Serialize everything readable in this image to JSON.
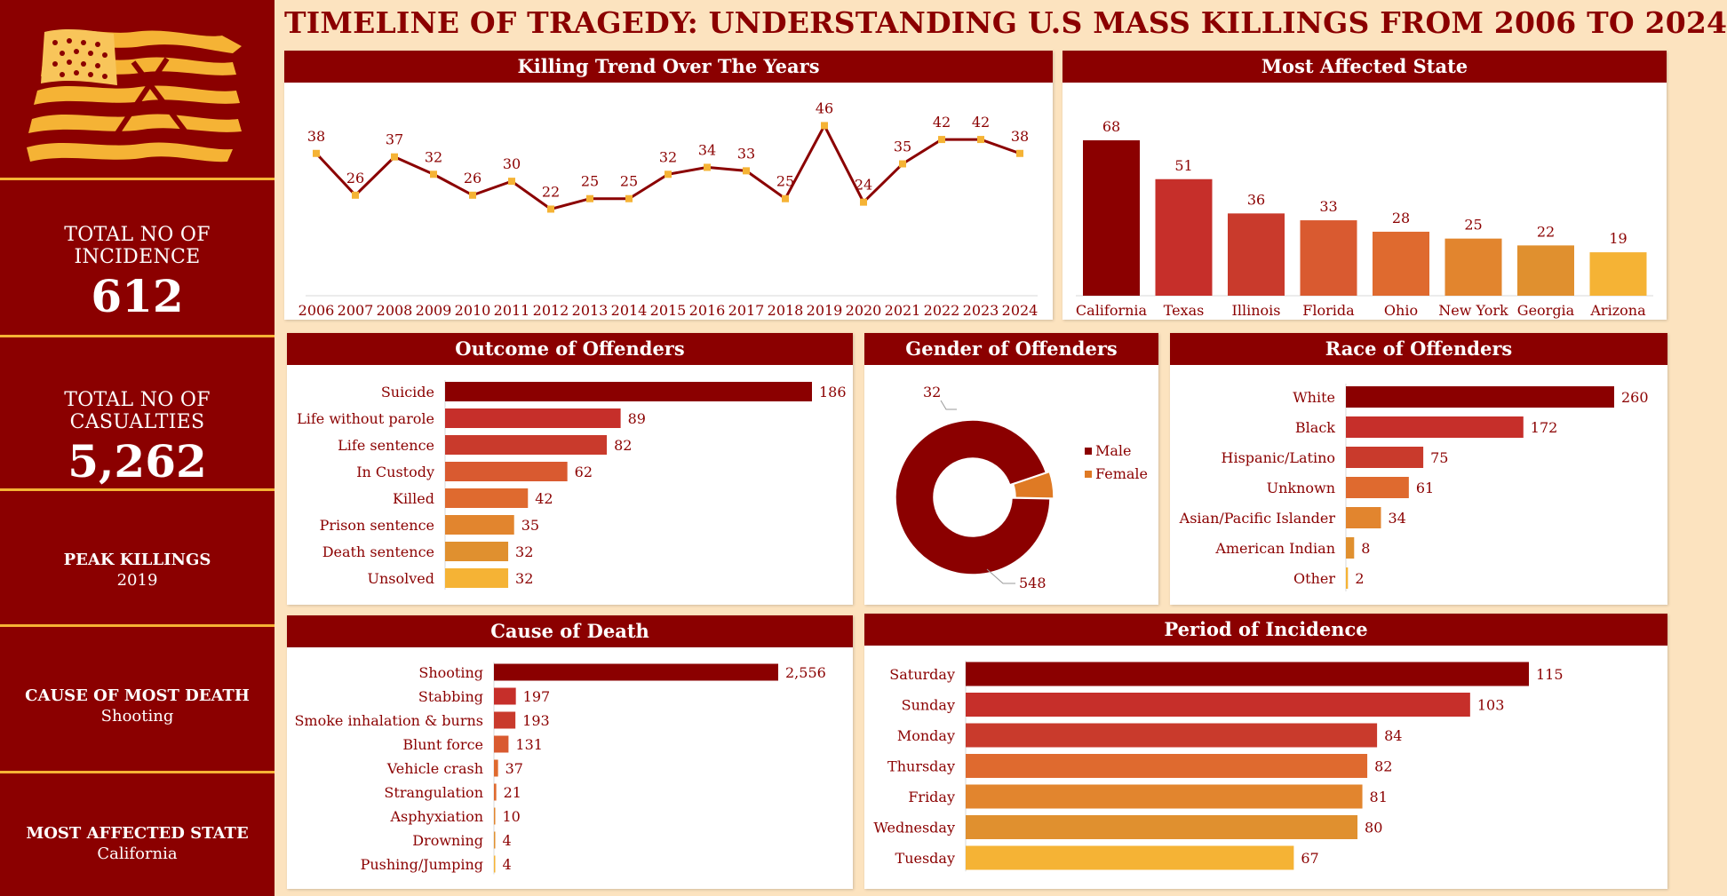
{
  "title": "TIMELINE OF TRAGEDY: UNDERSTANDING U.S MASS KILLINGS FROM 2006 TO 2024",
  "colors": {
    "maroon": "#8b0000",
    "accent": "#f5b335",
    "background": "#fce3bf",
    "ramp": [
      "#8b0000",
      "#c62f2a",
      "#c93a2c",
      "#d95a30",
      "#df6a2f",
      "#e2852e",
      "#e0902f",
      "#f5b335"
    ]
  },
  "kpis": {
    "total_incidence": {
      "label": "TOTAL NO OF INCIDENCE",
      "value": "612"
    },
    "total_casualties": {
      "label": "TOTAL NO OF CASUALTIES",
      "value": "5,262"
    },
    "peak_killings": {
      "label": "PEAK KILLINGS",
      "value": "2019"
    },
    "cause_most_death": {
      "label": "CAUSE OF MOST DEATH",
      "value": "Shooting"
    },
    "most_affected_state": {
      "label": "MOST AFFECTED STATE",
      "value": "California"
    }
  },
  "chart_data": [
    {
      "id": "trend",
      "type": "line",
      "title": "Killing Trend Over The Years",
      "x": [
        "2006",
        "2007",
        "2008",
        "2009",
        "2010",
        "2011",
        "2012",
        "2013",
        "2014",
        "2015",
        "2016",
        "2017",
        "2018",
        "2019",
        "2020",
        "2021",
        "2022",
        "2023",
        "2024"
      ],
      "values": [
        38,
        26,
        37,
        32,
        26,
        30,
        22,
        25,
        25,
        32,
        34,
        33,
        25,
        46,
        24,
        35,
        42,
        42,
        38
      ],
      "ylim": [
        0,
        50
      ],
      "grid": false
    },
    {
      "id": "states",
      "type": "bar",
      "title": "Most Affected State",
      "categories": [
        "California",
        "Texas",
        "Illinois",
        "Florida",
        "Ohio",
        "New York",
        "Georgia",
        "Arizona"
      ],
      "values": [
        68,
        51,
        36,
        33,
        28,
        25,
        22,
        19
      ],
      "ylim": [
        0,
        75
      ]
    },
    {
      "id": "outcome",
      "type": "bar",
      "orientation": "horizontal",
      "title": "Outcome of Offenders",
      "categories": [
        "Suicide",
        "Life without parole",
        "Life sentence",
        "In Custody",
        "Killed",
        "Prison sentence",
        "Death sentence",
        "Unsolved"
      ],
      "values": [
        186,
        89,
        82,
        62,
        42,
        35,
        32,
        32
      ],
      "xlim": [
        0,
        186
      ]
    },
    {
      "id": "gender",
      "type": "pie",
      "style": "donut",
      "title": "Gender of Offenders",
      "categories": [
        "Male",
        "Female"
      ],
      "values": [
        548,
        32
      ],
      "legend": "right"
    },
    {
      "id": "race",
      "type": "bar",
      "orientation": "horizontal",
      "title": "Race of Offenders",
      "categories": [
        "White",
        "Black",
        "Hispanic/Latino",
        "Unknown",
        "Asian/Pacific Islander",
        "American Indian",
        "Other"
      ],
      "values": [
        260,
        172,
        75,
        61,
        34,
        8,
        2
      ],
      "xlim": [
        0,
        260
      ]
    },
    {
      "id": "cause",
      "type": "bar",
      "orientation": "horizontal",
      "title": "Cause of Death",
      "categories": [
        "Shooting",
        "Stabbing",
        "Smoke inhalation & burns",
        "Blunt force",
        "Vehicle crash",
        "Strangulation",
        "Asphyxiation",
        "Drowning",
        "Pushing/Jumping"
      ],
      "values": [
        2556,
        197,
        193,
        131,
        37,
        21,
        10,
        4,
        4
      ],
      "value_labels": [
        "2,556",
        "197",
        "193",
        "131",
        "37",
        "21",
        "10",
        "4",
        "4"
      ],
      "xlim": [
        0,
        2556
      ]
    },
    {
      "id": "period",
      "type": "bar",
      "orientation": "horizontal",
      "title": "Period of Incidence",
      "categories": [
        "Saturday",
        "Sunday",
        "Monday",
        "Thursday",
        "Friday",
        "Wednesday",
        "Tuesday"
      ],
      "values": [
        115,
        103,
        84,
        82,
        81,
        80,
        67
      ],
      "xlim": [
        0,
        115
      ]
    }
  ]
}
